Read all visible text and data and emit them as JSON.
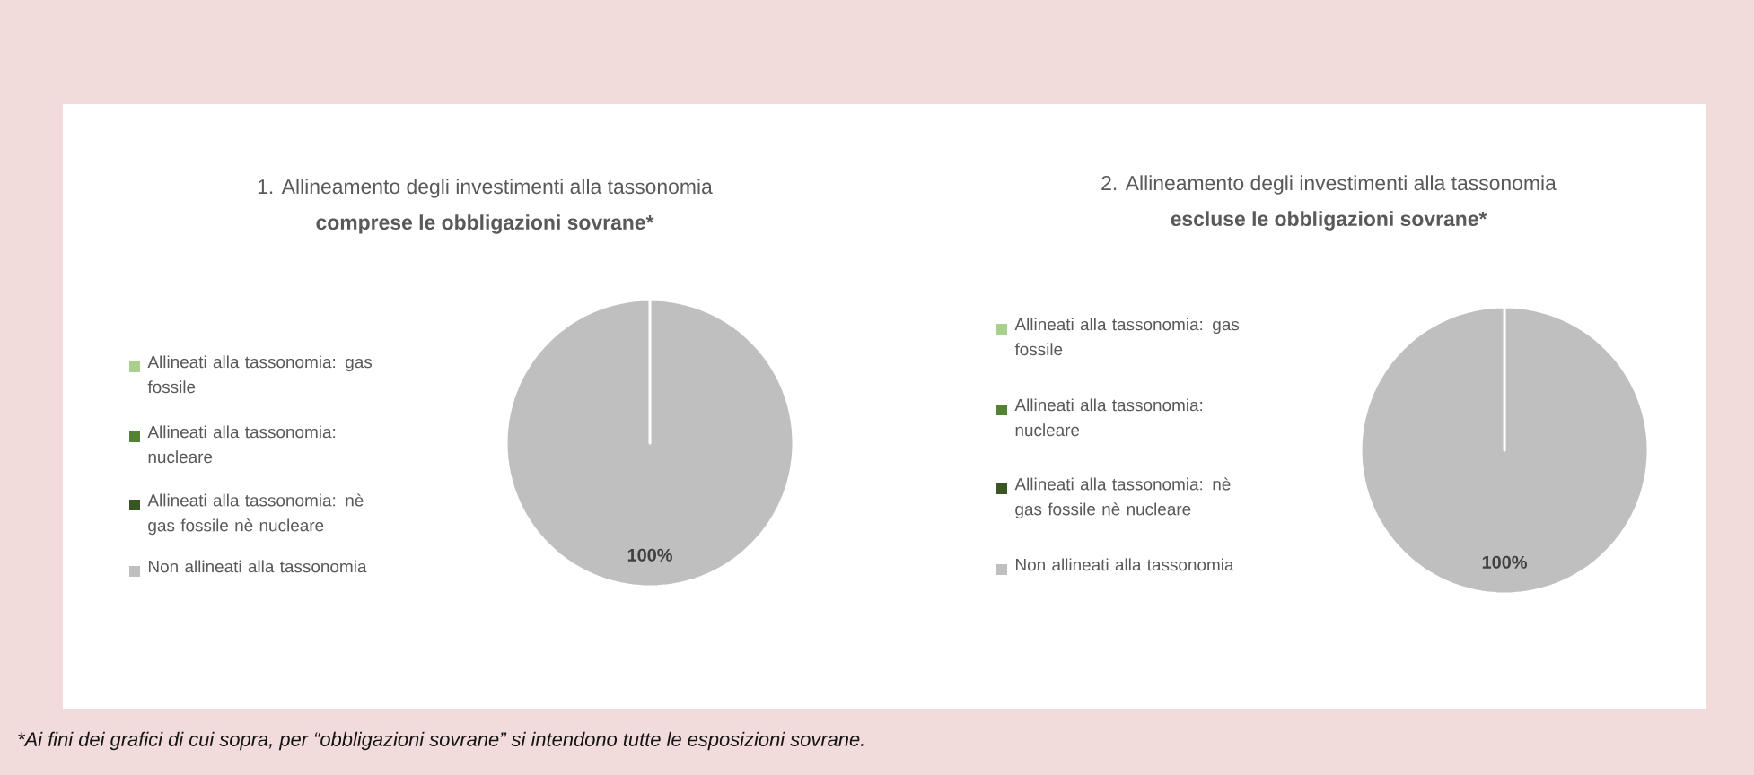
{
  "chart_data": [
    {
      "type": "pie",
      "title": "1. Allineamento degli investimenti alla tassonomia",
      "subtitle": "comprese le obbligazioni sovrane*",
      "categories": [
        "Allineati alla tassonomia: gas fossile",
        "Allineati alla tassonomia: nucleare",
        "Allineati alla tassonomia: nè gas fossile nè nucleare",
        "Non allineati alla tassonomia"
      ],
      "values": [
        0,
        0,
        0,
        100
      ],
      "colors": [
        "#a9d18e",
        "#548235",
        "#375623",
        "#bfbfbf"
      ],
      "value_labels": [
        null,
        null,
        null,
        "100%"
      ],
      "legend": "left",
      "annotations": [
        "*Ai fini dei grafici di cui sopra, per “obbligazioni sovrane” si intendono tutte le esposizioni sovrane."
      ]
    },
    {
      "type": "pie",
      "title": "2. Allineamento degli investimenti alla tassonomia",
      "subtitle": "escluse le obbligazioni sovrane*",
      "categories": [
        "Allineati alla tassonomia: gas fossile",
        "Allineati alla tassonomia: nucleare",
        "Allineati alla tassonomia: nè gas fossile nè nucleare",
        "Non allineati alla tassonomia"
      ],
      "values": [
        0,
        0,
        0,
        100
      ],
      "colors": [
        "#a9d18e",
        "#548235",
        "#375623",
        "#bfbfbf"
      ],
      "value_labels": [
        null,
        null,
        null,
        "100%"
      ],
      "legend": "left"
    }
  ]
}
